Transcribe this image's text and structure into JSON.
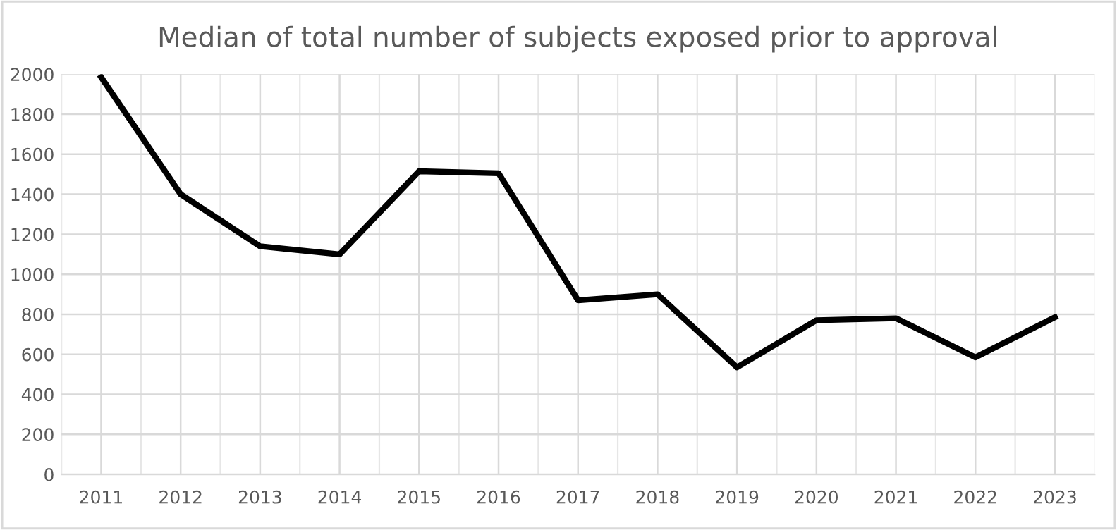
{
  "chart_data": {
    "type": "line",
    "title": "Median of total number of subjects exposed prior to approval",
    "categories": [
      "2011",
      "2012",
      "2013",
      "2014",
      "2015",
      "2016",
      "2017",
      "2018",
      "2019",
      "2020",
      "2021",
      "2022",
      "2023"
    ],
    "series": [
      {
        "color": "#000000",
        "values": [
          1985,
          1400,
          1140,
          1100,
          1515,
          1505,
          870,
          900,
          535,
          770,
          780,
          585,
          785
        ]
      }
    ],
    "ylim": [
      0,
      2000
    ],
    "yticks": [
      0,
      200,
      400,
      600,
      800,
      1000,
      1200,
      1400,
      1600,
      1800,
      2000
    ],
    "grid": true,
    "marker": "none",
    "line_style": "solid"
  }
}
